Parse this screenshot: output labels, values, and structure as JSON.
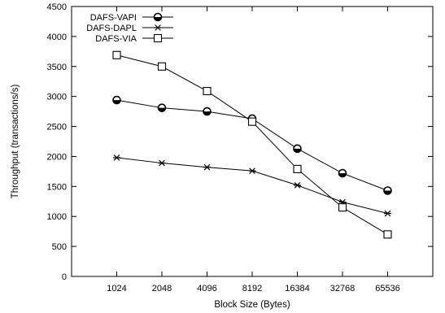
{
  "chart_data": {
    "type": "line",
    "xlabel": "Block Size (Bytes)",
    "ylabel": "Throughput (transactions/s)",
    "categories": [
      "1024",
      "2048",
      "4096",
      "8192",
      "16384",
      "32768",
      "65536"
    ],
    "ylim": [
      0,
      4500
    ],
    "yticks": [
      0,
      500,
      1000,
      1500,
      2000,
      2500,
      3000,
      3500,
      4000,
      4500
    ],
    "grid": false,
    "legend_position": "top-left",
    "series": [
      {
        "name": "DAFS-VAPI",
        "marker": "half-filled-circle",
        "values": [
          2940,
          2810,
          2750,
          2630,
          2130,
          1720,
          1430
        ]
      },
      {
        "name": "DAFS-DAPL",
        "marker": "asterisk",
        "values": [
          1980,
          1890,
          1820,
          1760,
          1520,
          1240,
          1050
        ]
      },
      {
        "name": "DAFS-VIA",
        "marker": "square",
        "values": [
          3690,
          3500,
          3090,
          2580,
          1790,
          1150,
          700
        ]
      }
    ]
  }
}
